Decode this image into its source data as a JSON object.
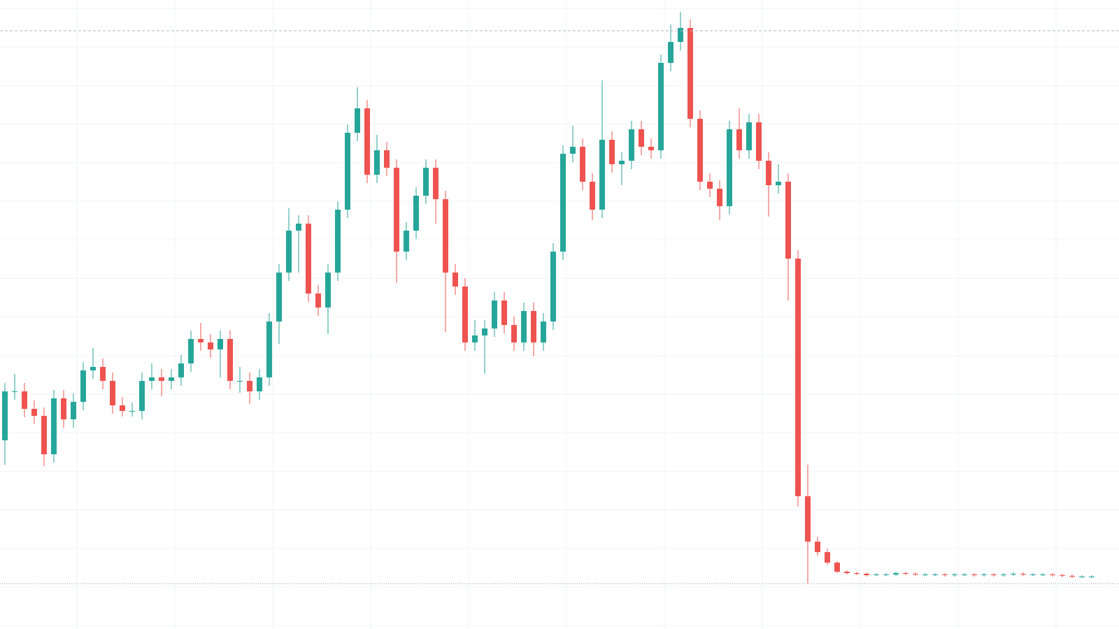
{
  "chart_data": {
    "type": "candlestick",
    "open": [
      27,
      34,
      34,
      31.5,
      30.5,
      25,
      33,
      30,
      32.5,
      37,
      37.5,
      35.5,
      32,
      31.2,
      31.2,
      35.5,
      36,
      35.5,
      36,
      38,
      41.5,
      41,
      40,
      41.5,
      35.5,
      35.5,
      34,
      36,
      44,
      51,
      57,
      58,
      48,
      46,
      51,
      60,
      71,
      74.5,
      65,
      68.5,
      66,
      54,
      57,
      62,
      66,
      61.5,
      51,
      49,
      41,
      42,
      43,
      47,
      43.5,
      41,
      45.5,
      41,
      44,
      54,
      68,
      69,
      64,
      60,
      70,
      66.5,
      67,
      71.5,
      69,
      68.5,
      81,
      84,
      86,
      73,
      64,
      63,
      60.5,
      71.5,
      68.5,
      72.5,
      67,
      63.5,
      64,
      53,
      19,
      12.5,
      11,
      9.5,
      8.2,
      8,
      7.9,
      7.7,
      7.8,
      7.8,
      8,
      7.9,
      7.8,
      7.8,
      7.8,
      7.7,
      7.8,
      7.8,
      7.7,
      7.8,
      7.7,
      7.8,
      7.9,
      7.8,
      7.8,
      7.8,
      7.7,
      7.6,
      7.5,
      7.5
    ],
    "high": [
      35.2,
      36.5,
      35.2,
      32.7,
      31.7,
      34.2,
      34.2,
      33.7,
      38.2,
      40.2,
      38.7,
      36.7,
      33.2,
      32.4,
      36.7,
      38,
      37.2,
      37.2,
      39.2,
      42.7,
      43.8,
      42.2,
      42.7,
      42.7,
      37.5,
      36.7,
      37.2,
      45.2,
      52.2,
      60.2,
      59.2,
      59.2,
      49.2,
      52.2,
      61.2,
      72.2,
      77.5,
      75.7,
      70.7,
      69.7,
      67.2,
      58.2,
      63.2,
      67.2,
      67.2,
      62.7,
      52.2,
      50.2,
      44.2,
      44.2,
      48.2,
      48.2,
      44.7,
      46.7,
      46.7,
      45.2,
      55.2,
      69.2,
      72,
      70.2,
      65.2,
      78.5,
      71.2,
      68.2,
      72.7,
      72.7,
      70.2,
      82.2,
      86.5,
      88.3,
      87.2,
      74.2,
      65.2,
      64.2,
      72.7,
      74.5,
      73.7,
      73.7,
      68.2,
      66.5,
      65.2,
      54.2,
      23.5,
      13.2,
      11.5,
      9.7,
      8.4,
      8.2,
      8.1,
      8,
      8,
      8.2,
      8.2,
      8.1,
      8,
      8,
      8,
      8,
      8,
      8,
      8,
      8,
      8,
      8.1,
      8.1,
      8,
      8,
      8,
      7.9,
      7.8,
      7.7,
      7.7
    ],
    "low": [
      23.5,
      32.8,
      30.3,
      29.3,
      23.3,
      23.8,
      28.8,
      28.8,
      31.3,
      35.8,
      34.3,
      30.8,
      30.4,
      30.4,
      30,
      34.3,
      33.3,
      34.3,
      34.8,
      36.8,
      39.8,
      38.8,
      36,
      34.3,
      33.8,
      32.2,
      32.8,
      34.8,
      40.8,
      49.8,
      51,
      46.8,
      44.8,
      42.2,
      49.8,
      58.8,
      69.8,
      63.8,
      63.8,
      64.8,
      49.5,
      52.8,
      55.8,
      60.8,
      58,
      42.5,
      47.8,
      39.8,
      39.8,
      36.5,
      41.8,
      42.3,
      39.8,
      39.8,
      39,
      39.8,
      42.8,
      52.8,
      66.8,
      62.8,
      58.5,
      58.8,
      65.3,
      63.5,
      65.8,
      67.8,
      67.3,
      67.3,
      79.8,
      82.8,
      71.8,
      62.8,
      61.8,
      58.5,
      59.3,
      67.3,
      67.3,
      65.8,
      59,
      62.3,
      47,
      17.5,
      6.5,
      10.5,
      9.2,
      8,
      7.8,
      7.7,
      7.5,
      7.6,
      7.6,
      7.6,
      7.7,
      7.6,
      7.6,
      7.6,
      7.5,
      7.5,
      7.6,
      7.5,
      7.5,
      7.5,
      7.5,
      7.6,
      7.6,
      7.6,
      7.6,
      7.5,
      7.4,
      7.3,
      7.3,
      7.3
    ],
    "close": [
      34,
      34,
      31.5,
      30.5,
      25,
      33,
      30,
      32.5,
      37,
      37.5,
      35.5,
      32,
      31.2,
      31.2,
      35.5,
      36,
      35.5,
      36,
      38,
      41.5,
      41,
      40,
      41.5,
      35.5,
      35.5,
      34,
      36,
      44,
      51,
      57,
      58,
      48,
      46,
      51,
      60,
      71,
      74.5,
      65,
      68.5,
      66,
      54,
      57,
      62,
      66,
      61.5,
      51,
      49,
      41,
      42,
      43,
      47,
      43.5,
      41,
      45.5,
      41,
      44,
      54,
      68,
      69,
      64,
      60,
      70,
      66.5,
      67,
      71.5,
      69,
      68.5,
      81,
      84,
      86,
      73,
      64,
      63,
      60.5,
      71.5,
      68.5,
      72.5,
      67,
      63.5,
      64,
      53,
      19,
      12.5,
      11,
      9.5,
      8.2,
      8,
      7.9,
      7.7,
      7.8,
      7.8,
      8,
      7.9,
      7.8,
      7.8,
      7.8,
      7.7,
      7.8,
      7.8,
      7.7,
      7.8,
      7.7,
      7.8,
      7.9,
      7.8,
      7.8,
      7.8,
      7.7,
      7.6,
      7.5,
      7.5,
      7.5
    ],
    "up_color": "#26a69a",
    "down_color": "#ef5350",
    "ylim": [
      0,
      90
    ],
    "grid": true,
    "high_line": 85.6,
    "low_line": 6.5
  }
}
